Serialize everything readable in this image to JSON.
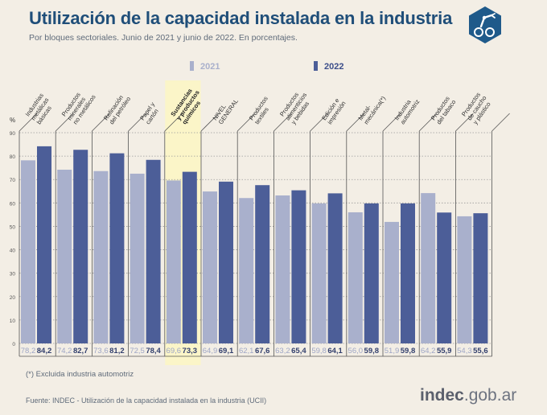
{
  "header": {
    "title": "Utilización de la capacidad instalada en la industria",
    "subtitle": "Por bloques sectoriales. Junio de 2021 y junio de 2022. En porcentajes."
  },
  "legend": {
    "label_2021": "2021",
    "label_2022": "2022"
  },
  "footnote": "(*) Excluida industria automotriz",
  "source": "Fuente: INDEC - Utilización de la capacidad instalada en la industria (UCII)",
  "brand": {
    "main": "indec",
    "suffix": ".gob.ar"
  },
  "logo": {
    "icon": "industrial-robot-arm-icon"
  },
  "colors": {
    "title": "#1f4e79",
    "series_2021": "#a9b0cc",
    "series_2022": "#4c5e98",
    "highlight": "#fbf5c8"
  },
  "chart_data": {
    "type": "bar",
    "ylabel": "%",
    "ylim": [
      0,
      90
    ],
    "yticks": [
      "0",
      "10",
      "20",
      "30",
      "40",
      "50",
      "60",
      "70",
      "80",
      "90"
    ],
    "highlight_category_index": 4,
    "categories": [
      [
        "Industrias",
        "metálicas",
        "básicas"
      ],
      [
        "Productos",
        "minerales",
        "no metálicos"
      ],
      [
        "Refinación",
        "del petróleo"
      ],
      [
        "Papel y",
        "cartón"
      ],
      [
        "Sustancias",
        "y productos",
        "químicos"
      ],
      [
        "NIVEL",
        "GENERAL"
      ],
      [
        "Productos",
        "textiles"
      ],
      [
        "Productos",
        "alimenticios",
        "y bebidas"
      ],
      [
        "Edición e",
        "impresión"
      ],
      [
        "Metal-",
        "mecánica(*)"
      ],
      [
        "Industria",
        "automotriz"
      ],
      [
        "Productos",
        "del tabaco"
      ],
      [
        "Productos",
        "de caucho",
        "y plástico"
      ]
    ],
    "series": [
      {
        "name": "2021",
        "values": [
          78.2,
          74.2,
          73.6,
          72.5,
          69.6,
          64.9,
          62.1,
          63.2,
          59.8,
          56.0,
          51.9,
          64.2,
          54.3
        ],
        "labels": [
          "78,2",
          "74,2",
          "73,6",
          "72,5",
          "69,6",
          "64,9",
          "62,1",
          "63,2",
          "59,8",
          "56,0",
          "51,9",
          "64,2",
          "54,3"
        ]
      },
      {
        "name": "2022",
        "values": [
          84.2,
          82.7,
          81.2,
          78.4,
          73.3,
          69.1,
          67.6,
          65.4,
          64.1,
          59.8,
          59.8,
          55.9,
          55.6
        ],
        "labels": [
          "84,2",
          "82,7",
          "81,2",
          "78,4",
          "73,3",
          "69,1",
          "67,6",
          "65,4",
          "64,1",
          "59,8",
          "59,8",
          "55,9",
          "55,6"
        ]
      }
    ]
  }
}
